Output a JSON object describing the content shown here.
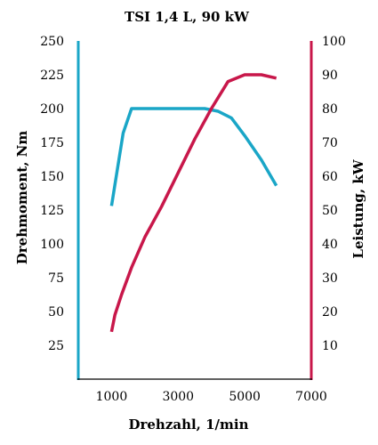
{
  "chart_data": {
    "type": "line",
    "title": "TSI 1,4 L, 90 kW",
    "xlabel": "Drehzahl, 1/min",
    "ylabel_left": "Drehmoment, Nm",
    "ylabel_right": "Leistung, kW",
    "xlim": [
      0,
      7000
    ],
    "ylim_left": [
      0,
      250
    ],
    "ylim_right": [
      0,
      100
    ],
    "x_ticks": [
      "1000",
      "3000",
      "5000",
      "7000"
    ],
    "y_left_ticks": [
      "25",
      "50",
      "75",
      "100",
      "125",
      "150",
      "175",
      "200",
      "225",
      "250"
    ],
    "y_right_ticks": [
      "10",
      "20",
      "30",
      "40",
      "50",
      "60",
      "70",
      "80",
      "90",
      "100"
    ],
    "grid": false,
    "series": [
      {
        "name": "",
        "axis": "left",
        "color": "#1aa6c7",
        "x": [
          1000,
          1350,
          1600,
          2000,
          3000,
          3800,
          4200,
          4600,
          5000,
          5500,
          5950
        ],
        "y": [
          128,
          182,
          200,
          200,
          200,
          200,
          198,
          193,
          180,
          162,
          143
        ]
      },
      {
        "name": "",
        "axis": "right",
        "color": "#c8174a",
        "x": [
          1000,
          1100,
          1300,
          1600,
          2000,
          2500,
          3000,
          3500,
          4000,
          4500,
          5000,
          5500,
          5950
        ],
        "y": [
          14,
          19,
          25,
          33,
          42,
          51,
          61,
          71,
          80,
          88,
          90,
          90,
          89
        ]
      }
    ],
    "axis_colors": {
      "left": "#1aa6c7",
      "right": "#c8174a",
      "bottom": "#000000"
    }
  }
}
